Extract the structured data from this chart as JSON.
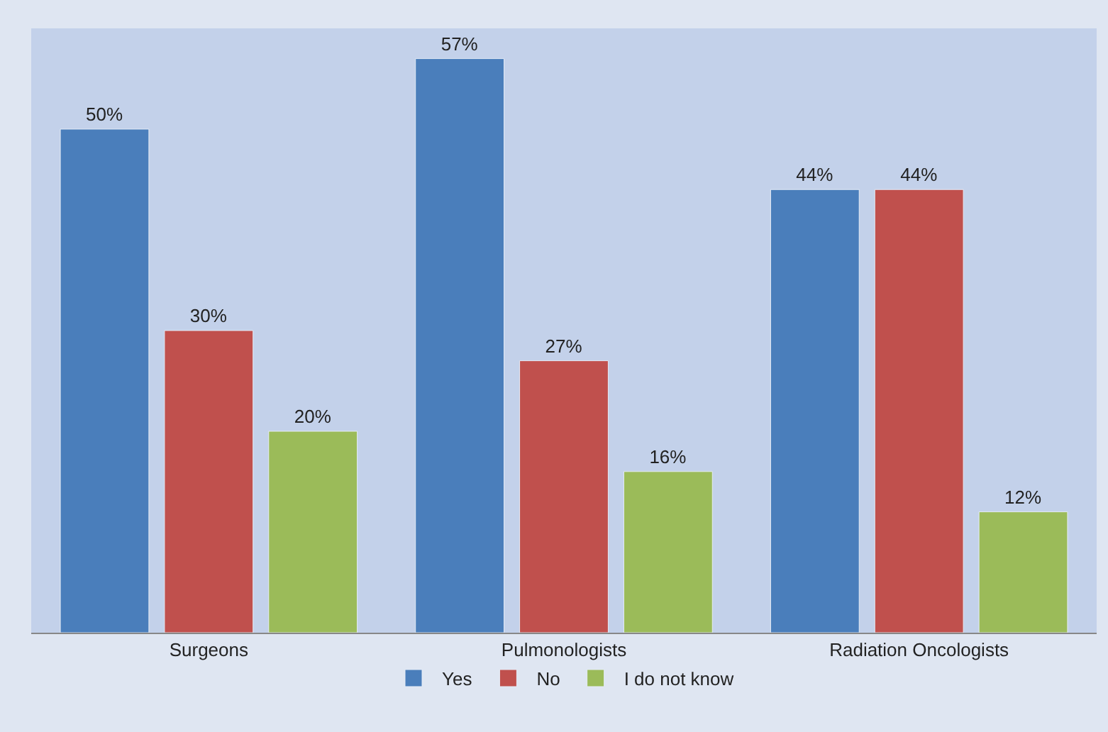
{
  "chart_data": {
    "type": "bar",
    "categories": [
      "Surgeons",
      "Pulmonologists",
      "Radiation Oncologists"
    ],
    "series": [
      {
        "name": "Yes",
        "color": "#4a7ebb",
        "values": [
          50,
          57,
          44
        ],
        "value_labels": [
          "50%",
          "57%",
          "44%"
        ]
      },
      {
        "name": "No",
        "color": "#c0504d",
        "values": [
          30,
          27,
          44
        ],
        "value_labels": [
          "30%",
          "27%",
          "44%"
        ]
      },
      {
        "name": "I do not know",
        "color": "#9bbb59",
        "values": [
          20,
          16,
          12
        ],
        "value_labels": [
          "20%",
          "16%",
          "12%"
        ]
      }
    ],
    "legend": "bottom",
    "grid": false,
    "tick_labels": "x"
  }
}
